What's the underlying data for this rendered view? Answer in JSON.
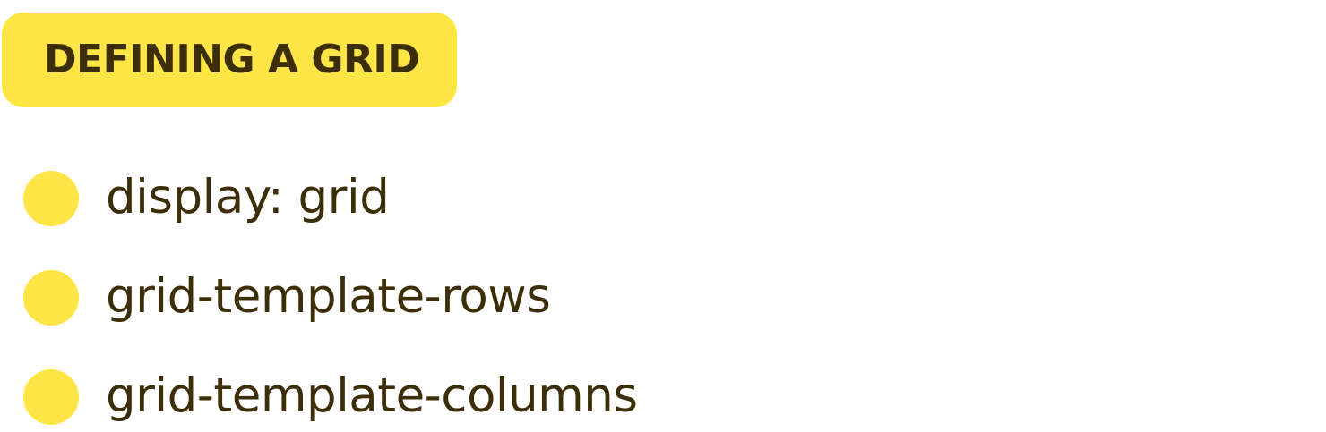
{
  "heading": {
    "title": "DEFINING A GRID"
  },
  "list": {
    "items": [
      {
        "label": "display: grid"
      },
      {
        "label": "grid-template-rows"
      },
      {
        "label": "grid-template-columns"
      }
    ]
  },
  "colors": {
    "accent": "#ffe545",
    "text": "#3d2e0a",
    "background": "#ffffff"
  }
}
